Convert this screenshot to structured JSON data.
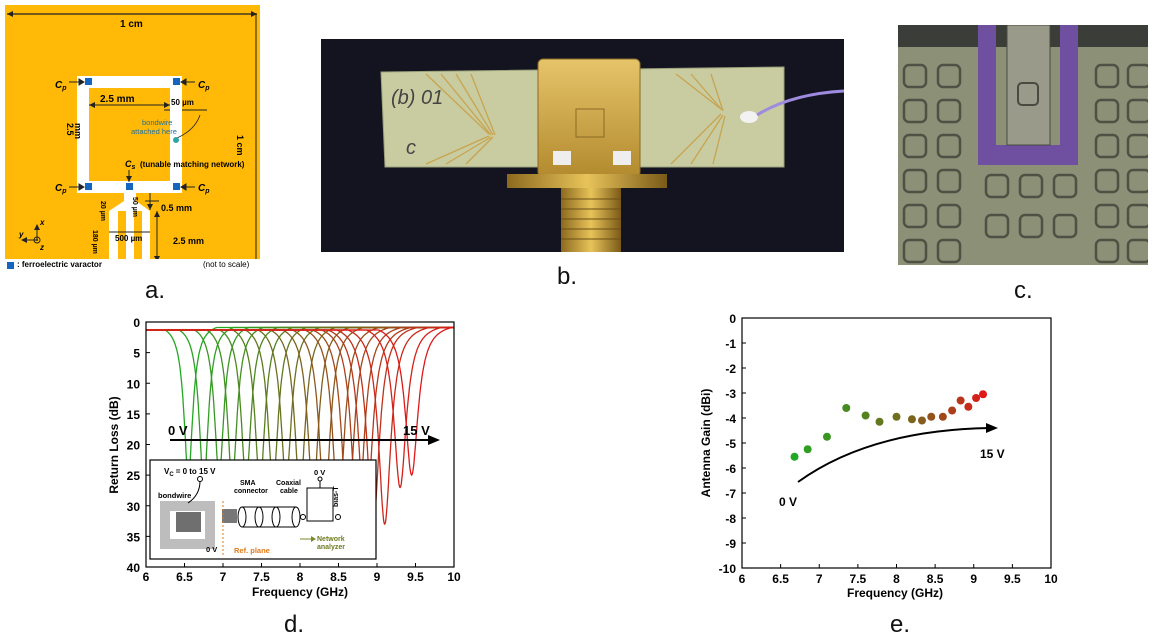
{
  "captions": {
    "a": "a.",
    "b": "b.",
    "c": "c.",
    "d": "d.",
    "e": "e."
  },
  "panel_a": {
    "width_label": "1 cm",
    "height_label": "1 cm",
    "cp": "C",
    "cp_sub": "p",
    "cs": "C",
    "cs_sub": "s",
    "cs_desc": "(tunable matching network)",
    "loop_width": "2.5 mm",
    "loop_height_1": "2.5",
    "loop_height_2": "mm",
    "trace_width": "50 µm",
    "bondwire_1": "bondwire",
    "bondwire_2": "attached here",
    "gap": "0.5 mm",
    "feed_gap_1": "50 µm",
    "feed_gap_2": "20 µm",
    "feed_width": "500 µm",
    "feed_len": "180 µm",
    "feed_height": "2.5 mm",
    "axis_x": "x",
    "axis_y": "y",
    "axis_z": "z",
    "legend": ": ferroelectric varactor",
    "note": "(not to scale)",
    "varactor_color": "#1565C0"
  },
  "panel_b": {
    "handwriting_1": "(b) 01",
    "handwriting_2": "c"
  },
  "panel_d": {
    "inset": {
      "vc": "V",
      "vc_sub": "C",
      "vc_range": "= 0 to 15 V",
      "zero_v_top": "0 V",
      "zero_v_bottom": "0 V",
      "bondwire": "bondwire",
      "sma_1": "SMA",
      "sma_2": "connector",
      "coax_1": "Coaxial",
      "coax_2": "cable",
      "bias_tee": "bias-T",
      "ref_plane": "Ref. plane",
      "network_1": "Network",
      "network_2": "analyzer"
    }
  },
  "chart_data": [
    {
      "id": "d",
      "type": "line",
      "xlabel": "Frequency (GHz)",
      "ylabel": "Return Loss (dB)",
      "xlim": [
        6,
        10
      ],
      "ylim": [
        0,
        40
      ],
      "y_inverted": true,
      "xticks": [
        "6",
        "6.5",
        "7",
        "7.5",
        "8",
        "8.5",
        "9",
        "9.5",
        "10"
      ],
      "yticks": [
        "0",
        "5",
        "10",
        "15",
        "20",
        "25",
        "30",
        "35",
        "40"
      ],
      "arrow_start_label": "0 V",
      "arrow_end_label": "15 V",
      "color_start": "#22A822",
      "color_end": "#E01818",
      "resonances": [
        {
          "f0": 6.55,
          "depth": 25.0
        },
        {
          "f0": 6.75,
          "depth": 26.5
        },
        {
          "f0": 6.95,
          "depth": 25.0
        },
        {
          "f0": 7.12,
          "depth": 26.0
        },
        {
          "f0": 7.3,
          "depth": 26.0
        },
        {
          "f0": 7.48,
          "depth": 26.5
        },
        {
          "f0": 7.65,
          "depth": 26.5
        },
        {
          "f0": 7.82,
          "depth": 26.0
        },
        {
          "f0": 8.0,
          "depth": 27.5
        },
        {
          "f0": 8.17,
          "depth": 28.0
        },
        {
          "f0": 8.32,
          "depth": 30.0
        },
        {
          "f0": 8.5,
          "depth": 31.5
        },
        {
          "f0": 8.62,
          "depth": 33.0
        },
        {
          "f0": 8.75,
          "depth": 34.5
        },
        {
          "f0": 8.85,
          "depth": 36.0
        },
        {
          "f0": 8.95,
          "depth": 33.5
        },
        {
          "f0": 9.1,
          "depth": 33.0
        },
        {
          "f0": 9.3,
          "depth": 27.0
        },
        {
          "f0": 9.45,
          "depth": 25.0
        }
      ]
    },
    {
      "id": "e",
      "type": "scatter",
      "xlabel": "Frequency (GHz)",
      "ylabel": "Antenna Gain (dBi)",
      "xlim": [
        6,
        10
      ],
      "ylim": [
        -10,
        0
      ],
      "xticks": [
        "6",
        "6.5",
        "7",
        "7.5",
        "8",
        "8.5",
        "9",
        "9.5",
        "10"
      ],
      "yticks": [
        "0",
        "-1",
        "-2",
        "-3",
        "-4",
        "-5",
        "-6",
        "-7",
        "-8",
        "-9",
        "-10"
      ],
      "arrow_start_label": "0 V",
      "arrow_end_label": "15 V",
      "points": [
        {
          "x": 6.68,
          "y": -5.55
        },
        {
          "x": 6.85,
          "y": -5.25
        },
        {
          "x": 7.1,
          "y": -4.75
        },
        {
          "x": 7.35,
          "y": -3.6
        },
        {
          "x": 7.6,
          "y": -3.9
        },
        {
          "x": 7.78,
          "y": -4.15
        },
        {
          "x": 8.0,
          "y": -3.95
        },
        {
          "x": 8.2,
          "y": -4.05
        },
        {
          "x": 8.33,
          "y": -4.1
        },
        {
          "x": 8.45,
          "y": -3.95
        },
        {
          "x": 8.6,
          "y": -3.95
        },
        {
          "x": 8.72,
          "y": -3.7
        },
        {
          "x": 8.83,
          "y": -3.3
        },
        {
          "x": 8.93,
          "y": -3.55
        },
        {
          "x": 9.03,
          "y": -3.2
        },
        {
          "x": 9.12,
          "y": -3.05
        }
      ]
    }
  ]
}
